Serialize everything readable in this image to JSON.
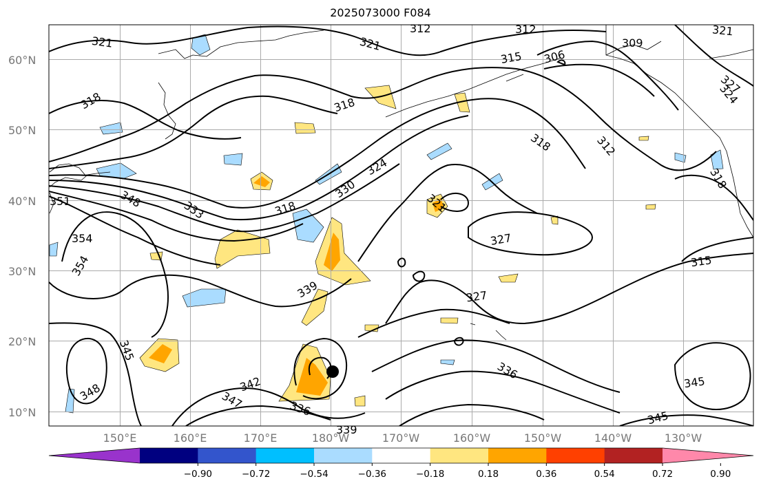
{
  "title": "2025073000 F084",
  "lat_labels": [
    "60°N",
    "50°N",
    "40°N",
    "30°N",
    "20°N",
    "10°N"
  ],
  "lon_labels": [
    "150°E",
    "160°E",
    "170°E",
    "180°W",
    "170°W",
    "160°W",
    "150°W",
    "140°W",
    "130°W"
  ],
  "colorbar": {
    "colors": [
      "#9933cc",
      "#000080",
      "#3355cc",
      "#00bfff",
      "#aadcff",
      "#ffffff",
      "#ffe680",
      "#ffa500",
      "#ff4000",
      "#b22222",
      "#ff88aa"
    ],
    "tick_labels": [
      "−0.90",
      "−0.72",
      "−0.54",
      "−0.36",
      "−0.18",
      "0.18",
      "0.36",
      "0.54",
      "0.72",
      "0.90"
    ]
  },
  "contour_labels": [
    "321",
    "312",
    "312",
    "321",
    "315",
    "306",
    "309",
    "321",
    "318",
    "318",
    "327",
    "324",
    "318",
    "318",
    "312",
    "324",
    "330",
    "318",
    "321",
    "351",
    "348",
    "333",
    "354",
    "354",
    "327",
    "315",
    "339",
    "327",
    "345",
    "348",
    "342",
    "347",
    "336",
    "336",
    "345",
    "345",
    "339"
  ]
}
